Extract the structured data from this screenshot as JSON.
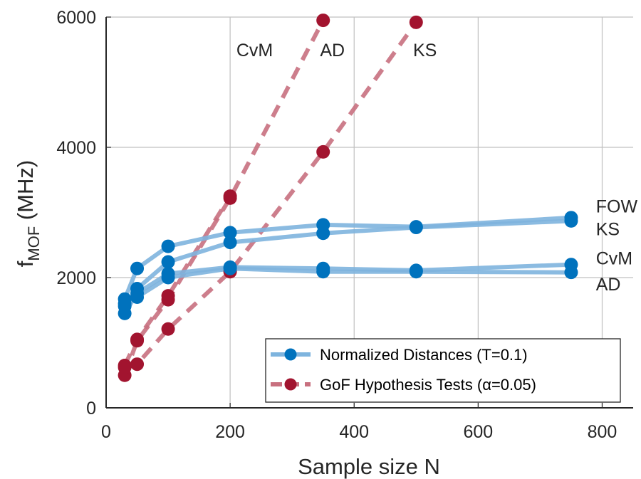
{
  "chart_data": {
    "type": "line",
    "title": "",
    "xlabel": "Sample size N",
    "ylabel": "f",
    "ylabel_subscript": "MOF",
    "ylabel_unit": " (MHz)",
    "xlim": [
      0,
      850
    ],
    "ylim": [
      0,
      6000
    ],
    "xticks": [
      0,
      200,
      400,
      600,
      800
    ],
    "xtick_labels": [
      "0",
      "200",
      "400",
      "600",
      "800"
    ],
    "yticks": [
      0,
      2000,
      4000,
      6000
    ],
    "ytick_labels": [
      "0",
      "2000",
      "4000",
      "6000"
    ],
    "grid": true,
    "legend_position": "bottom-right",
    "legend": [
      {
        "label": "Normalized Distances (T=0.1)",
        "color": "#0072bd",
        "line_color": "#7eb4de",
        "style": "solid"
      },
      {
        "label": "GoF Hypothesis Tests (α=0.05)",
        "color": "#a2142f",
        "line_color": "#c8707f",
        "style": "dashed"
      }
    ],
    "series": [
      {
        "name": "FOW",
        "group": "Normalized Distances (T=0.1)",
        "x": [
          30,
          50,
          100,
          200,
          350,
          500,
          750
        ],
        "y": [
          1670,
          2140,
          2480,
          2690,
          2810,
          2780,
          2920
        ]
      },
      {
        "name": "KS",
        "group": "Normalized Distances (T=0.1)",
        "x": [
          30,
          50,
          100,
          200,
          350,
          500,
          750
        ],
        "y": [
          1560,
          1830,
          2240,
          2540,
          2680,
          2770,
          2870
        ]
      },
      {
        "name": "CvM",
        "group": "Normalized Distances (T=0.1)",
        "x": [
          30,
          50,
          100,
          200,
          350,
          500,
          750
        ],
        "y": [
          1450,
          1760,
          2060,
          2160,
          2140,
          2110,
          2200
        ]
      },
      {
        "name": "AD",
        "group": "Normalized Distances (T=0.1)",
        "x": [
          30,
          50,
          100,
          200,
          350,
          500,
          750
        ],
        "y": [
          1600,
          1700,
          2000,
          2140,
          2090,
          2090,
          2080
        ]
      },
      {
        "name": "CvM",
        "group": "GoF Hypothesis Tests (α=0.05)",
        "x": [
          30,
          50,
          100,
          200
        ],
        "y": [
          650,
          1050,
          1720,
          3250
        ]
      },
      {
        "name": "AD",
        "group": "GoF Hypothesis Tests (α=0.05)",
        "x": [
          30,
          50,
          100,
          200,
          350
        ],
        "y": [
          500,
          1030,
          1660,
          3220,
          5950
        ]
      },
      {
        "name": "KS",
        "group": "GoF Hypothesis Tests (α=0.05)",
        "x": [
          30,
          50,
          100,
          200,
          350,
          500
        ],
        "y": [
          620,
          670,
          1210,
          2090,
          3930,
          5920
        ]
      }
    ],
    "annotations": [
      {
        "text": "FOW",
        "x": 790,
        "y": 3100
      },
      {
        "text": "KS",
        "x": 790,
        "y": 2750
      },
      {
        "text": "CvM",
        "x": 790,
        "y": 2300
      },
      {
        "text": "AD",
        "x": 790,
        "y": 1900
      },
      {
        "text": "CvM",
        "x": 210,
        "y": 5500
      },
      {
        "text": "AD",
        "x": 345,
        "y": 5500
      },
      {
        "text": "KS",
        "x": 495,
        "y": 5500
      }
    ]
  }
}
